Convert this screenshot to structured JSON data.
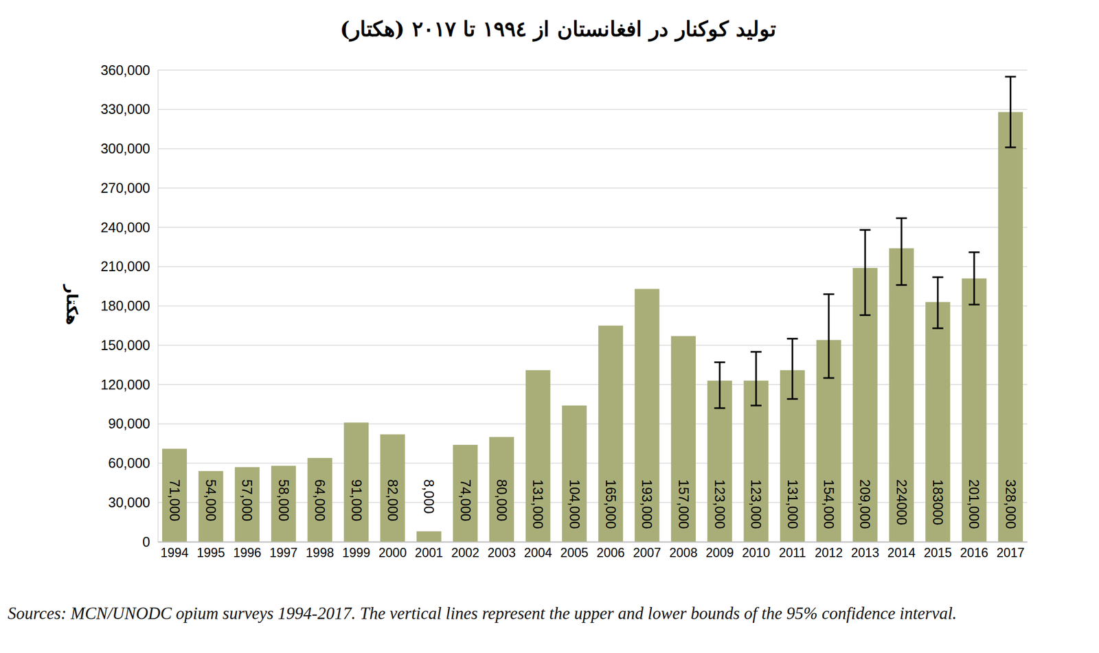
{
  "chart_data": {
    "type": "bar",
    "title": "تولید کوکنار در افغانستان از ۱۹۹٤ تا ۲۰۱۷ (هکتار)",
    "y_label": "هکتار",
    "note": "Sources: MCN/UNODC opium surveys 1994-2017. The vertical lines represent the upper and lower bounds of the 95% confidence interval.",
    "categories": [
      "1994",
      "1995",
      "1996",
      "1997",
      "1998",
      "1999",
      "2000",
      "2001",
      "2002",
      "2003",
      "2004",
      "2005",
      "2006",
      "2007",
      "2008",
      "2009",
      "2010",
      "2011",
      "2012",
      "2013",
      "2014",
      "2015",
      "2016",
      "2017"
    ],
    "values": [
      71000,
      54000,
      57000,
      58000,
      64000,
      91000,
      82000,
      8000,
      74000,
      80000,
      131000,
      104000,
      165000,
      193000,
      157000,
      123000,
      123000,
      131000,
      154000,
      209000,
      224000,
      183000,
      201000,
      328000
    ],
    "value_labels": [
      "71,000",
      "54,000",
      "57,000",
      "58,000",
      "64,000",
      "91,000",
      "82,000",
      "8,000",
      "74,000",
      "80,000",
      "131,000",
      "104,000",
      "165,000",
      "193,000",
      "157,000",
      "123,000",
      "123,000",
      "131,000",
      "154,000",
      "209,000",
      "224000",
      "183000",
      "201,000",
      "328,000"
    ],
    "ci_lower": [
      null,
      null,
      null,
      null,
      null,
      null,
      null,
      null,
      null,
      null,
      null,
      null,
      null,
      null,
      null,
      102000,
      104000,
      109000,
      125000,
      173000,
      196000,
      163000,
      181000,
      301000
    ],
    "ci_upper": [
      null,
      null,
      null,
      null,
      null,
      null,
      null,
      null,
      null,
      null,
      null,
      null,
      null,
      null,
      null,
      137000,
      145000,
      155000,
      189000,
      238000,
      247000,
      202000,
      221000,
      355000
    ],
    "color": "#a9ae79",
    "ylim": [
      0,
      360000
    ],
    "yticks": [
      0,
      {
        "value": 30000,
        "label": "30,000"
      },
      {
        "value": 60000,
        "label": "60,000"
      },
      {
        "value": 90000,
        "label": "90,000"
      },
      {
        "value": 120000,
        "label": "120,000"
      },
      {
        "value": 150000,
        "label": "150,000"
      },
      {
        "value": 180000,
        "label": "180,000"
      },
      {
        "value": 210000,
        "label": "210,000"
      },
      {
        "value": 240000,
        "label": "240,000"
      },
      {
        "value": 270000,
        "label": "270,000"
      },
      {
        "value": 300000,
        "label": "300,000"
      },
      {
        "value": 330000,
        "label": "330,000"
      },
      {
        "value": 360000,
        "label": "360,000"
      }
    ],
    "grid": true,
    "data_labels": true
  }
}
